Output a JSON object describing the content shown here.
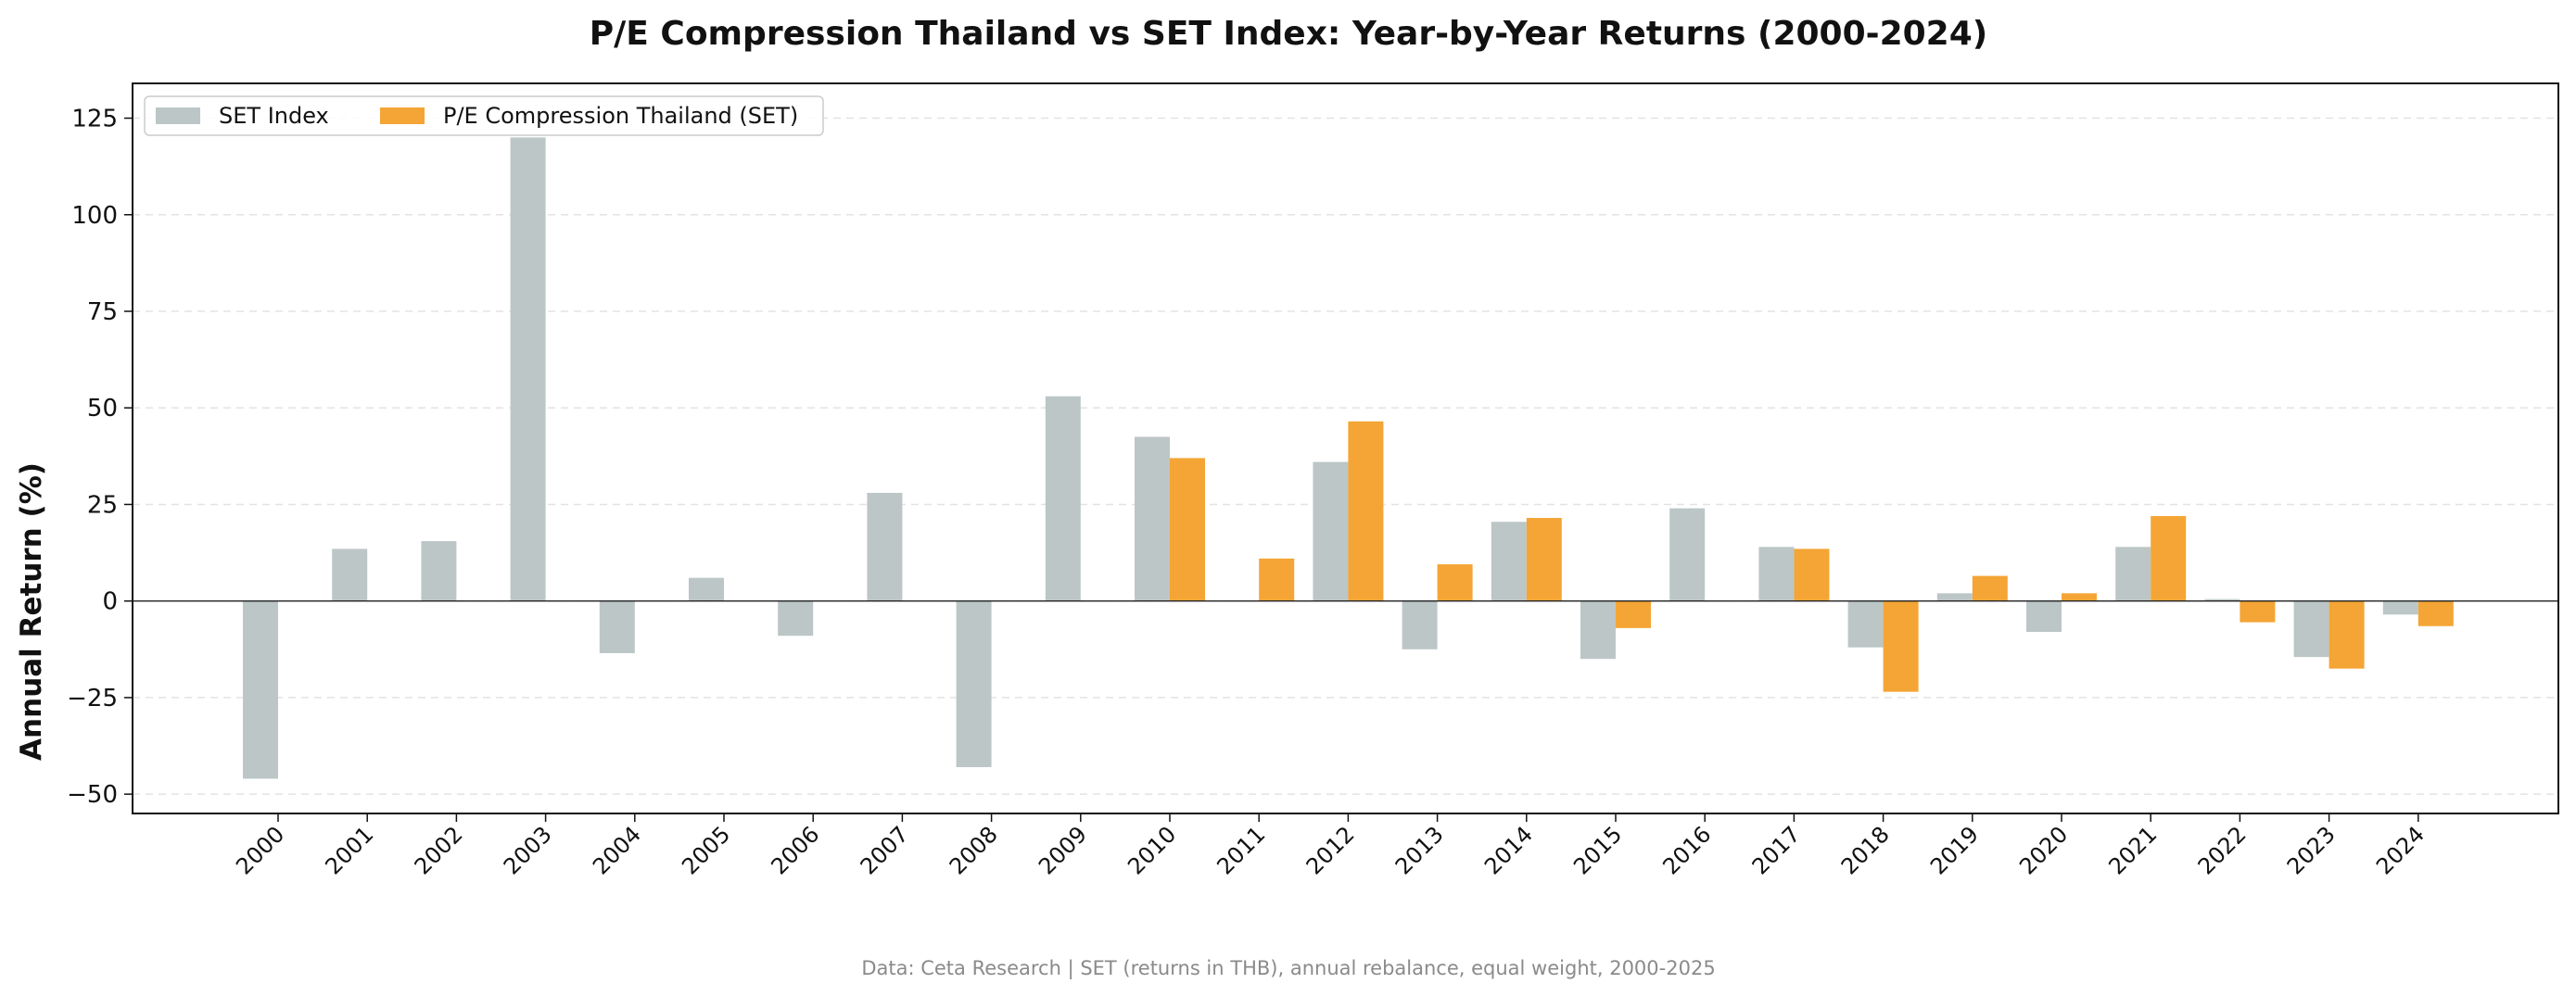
{
  "chart_data": {
    "type": "bar",
    "title": "P/E Compression Thailand vs SET Index: Year-by-Year Returns (2000-2024)",
    "xlabel": "",
    "ylabel": "Annual Return (%)",
    "categories": [
      "2000",
      "2001",
      "2002",
      "2003",
      "2004",
      "2005",
      "2006",
      "2007",
      "2008",
      "2009",
      "2010",
      "2011",
      "2012",
      "2013",
      "2014",
      "2015",
      "2016",
      "2017",
      "2018",
      "2019",
      "2020",
      "2021",
      "2022",
      "2023",
      "2024"
    ],
    "ylim": [
      -55,
      134
    ],
    "yticks": [
      -50,
      -25,
      0,
      25,
      50,
      75,
      100,
      125
    ],
    "ytick_labels": [
      "−50",
      "−25",
      "0",
      "25",
      "50",
      "75",
      "100",
      "125"
    ],
    "grid": "horizontal dashed",
    "legend_position": "top-left",
    "series": [
      {
        "name": "SET Index",
        "color": "#bcc6c6",
        "values": [
          -46,
          13.5,
          15.5,
          120,
          -13.5,
          6,
          -9,
          28,
          -43,
          53,
          42.5,
          null,
          36,
          -12.5,
          20.5,
          -15,
          24,
          14,
          -12,
          2,
          -8,
          14,
          0.5,
          -14.5,
          -3.5
        ]
      },
      {
        "name": "P/E Compression Thailand (SET)",
        "color": "#f4a535",
        "values": [
          null,
          null,
          null,
          null,
          null,
          null,
          null,
          null,
          null,
          null,
          37,
          11,
          46.5,
          9.5,
          21.5,
          -7,
          null,
          13.5,
          -23.5,
          6.5,
          2,
          22,
          -5.5,
          -17.5,
          -6.5
        ]
      }
    ],
    "source": "Data: Ceta Research | SET (returns in THB), annual rebalance, equal weight, 2000-2025"
  }
}
